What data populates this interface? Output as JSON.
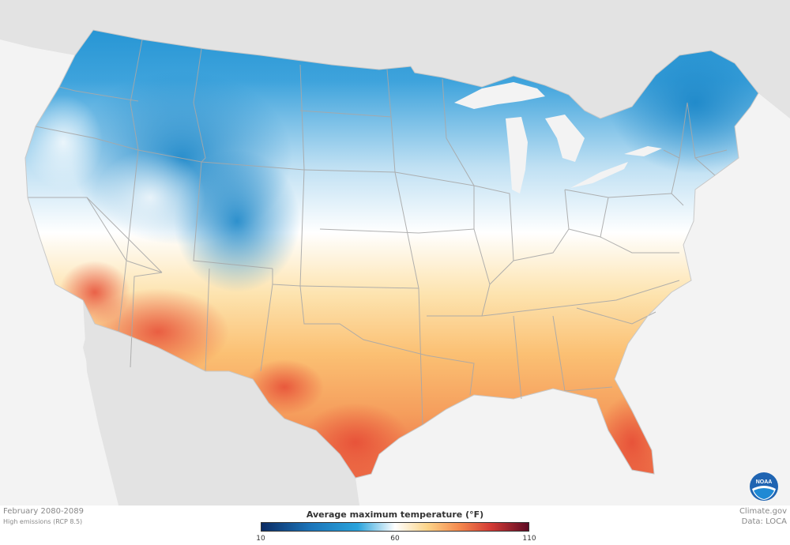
{
  "map": {
    "region": "Contiguous United States",
    "legend_title": "Average maximum temperature (°F)",
    "legend_ticks": [
      "10",
      "60",
      "110"
    ],
    "legend_range": [
      10,
      110
    ],
    "colors": {
      "cold": "#1b8fd1",
      "mid": "#ffffff",
      "warm": "#fbc272",
      "hot": "#e8553e",
      "ocean": "#f3f3f3",
      "land_outside": "#e3e3e3",
      "lakes": "#f3f3f3"
    }
  },
  "meta": {
    "title": "February 2080-2089",
    "subtitle": "High emissions (RCP 8.5)"
  },
  "credits": {
    "source": "Climate.gov",
    "data": "Data: LOCA"
  },
  "logo": {
    "icon": "noaa-logo-icon",
    "text": "NOAA"
  }
}
